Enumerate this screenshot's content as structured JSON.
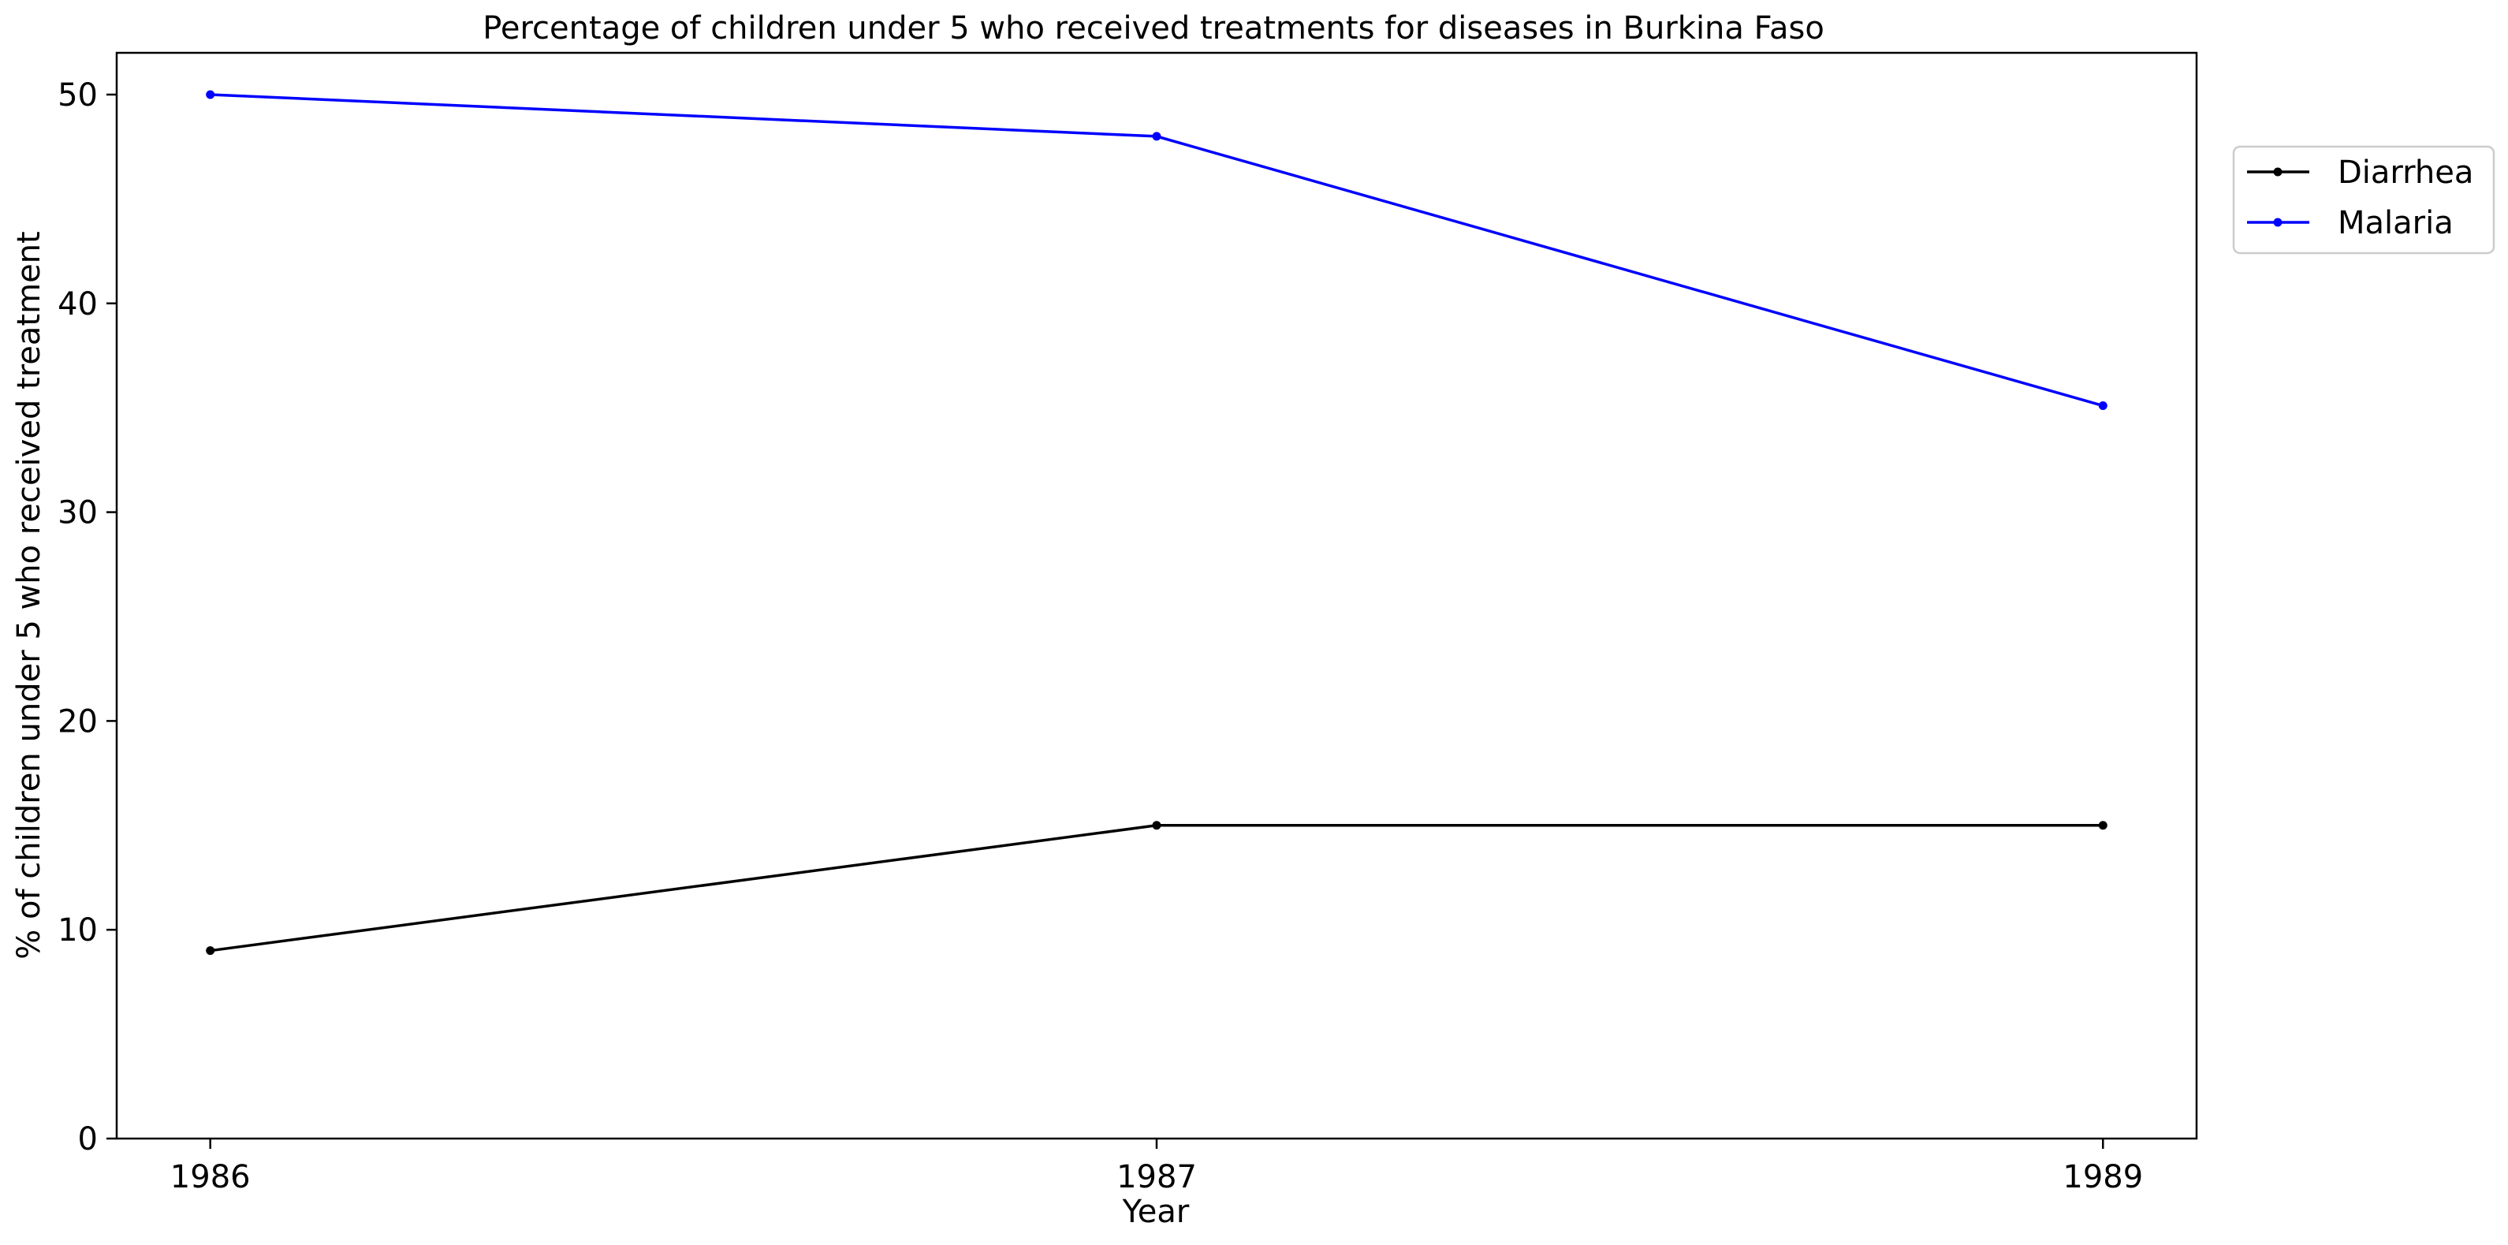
{
  "chart_data": {
    "type": "line",
    "title": "Percentage of children under 5 who received treatments for diseases in Burkina Faso",
    "xlabel": "Year",
    "ylabel": "% of children under 5 who received treatment",
    "x": [
      "1986",
      "1987",
      "1989"
    ],
    "ylim": [
      0,
      52
    ],
    "yticks": [
      0,
      10,
      20,
      30,
      40,
      50
    ],
    "grid": false,
    "legend_position": "top-right, outside plot area",
    "series": [
      {
        "name": "Diarrhea",
        "color": "#000000",
        "values": [
          9,
          15,
          15
        ]
      },
      {
        "name": "Malaria",
        "color": "#0000ff",
        "values": [
          50,
          48,
          35.1
        ]
      }
    ]
  }
}
